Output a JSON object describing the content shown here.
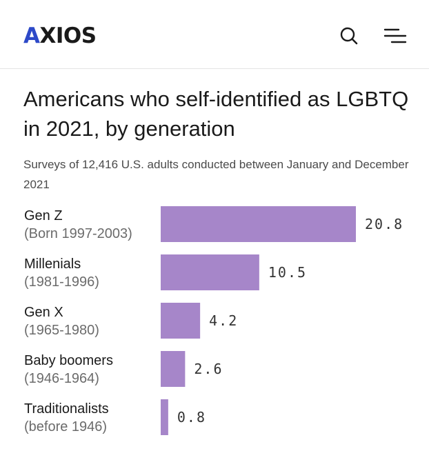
{
  "header": {
    "logo_first": "A",
    "logo_rest": "XIOS",
    "search_icon": "search-icon",
    "menu_icon": "menu-icon"
  },
  "colors": {
    "accent": "#2d49c8",
    "bar": "#a686c9"
  },
  "chart_data": {
    "type": "bar",
    "orientation": "horizontal",
    "title": "Americans who self-identified as LGBTQ in 2021, by generation",
    "subtitle": "Surveys of 12,416 U.S. adults conducted between January and December 2021",
    "xlabel": "",
    "ylabel": "",
    "grid": false,
    "xlim": [
      0,
      20.8
    ],
    "categories": [
      {
        "name": "Gen Z",
        "years": "(Born 1997-2003)"
      },
      {
        "name": "Millenials",
        "years": "(1981-1996)"
      },
      {
        "name": "Gen X",
        "years": "(1965-1980)"
      },
      {
        "name": "Baby boomers",
        "years": "(1946-1964)"
      },
      {
        "name": "Traditionalists",
        "years": "(before 1946)"
      }
    ],
    "values": [
      20.8,
      10.5,
      4.2,
      2.6,
      0.8
    ],
    "value_labels": [
      "20.8",
      "10.5",
      "4.2",
      "2.6",
      "0.8"
    ]
  }
}
